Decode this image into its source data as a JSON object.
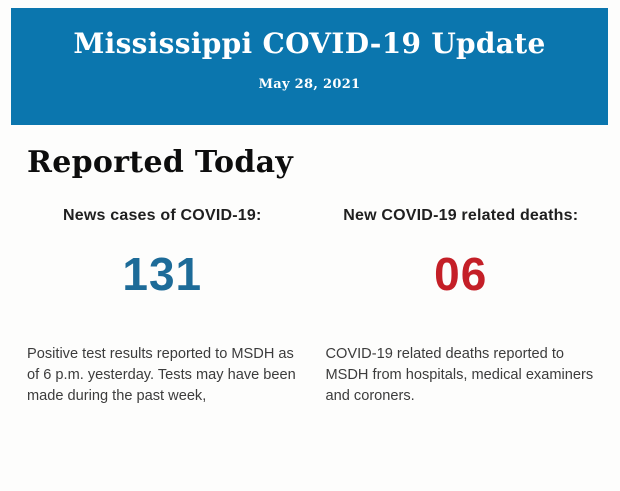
{
  "banner": {
    "title": "Mississippi COVID-19 Update",
    "date": "May 28, 2021",
    "background": "#0b76ae",
    "text_color": "#ffffff"
  },
  "section": {
    "heading": "Reported Today"
  },
  "stats": [
    {
      "label": "News cases of COVID-19:",
      "value": "131",
      "value_color": "#1d6b98",
      "description": "Positive test results reported to MSDH as of 6 p.m. yesterday. Tests may have been made during the past week,"
    },
    {
      "label": "New COVID-19 related deaths:",
      "value": "06",
      "value_color": "#c41f27",
      "description": "COVID-19 related deaths reported to MSDH from hospitals, medical examiners and coroners."
    }
  ]
}
